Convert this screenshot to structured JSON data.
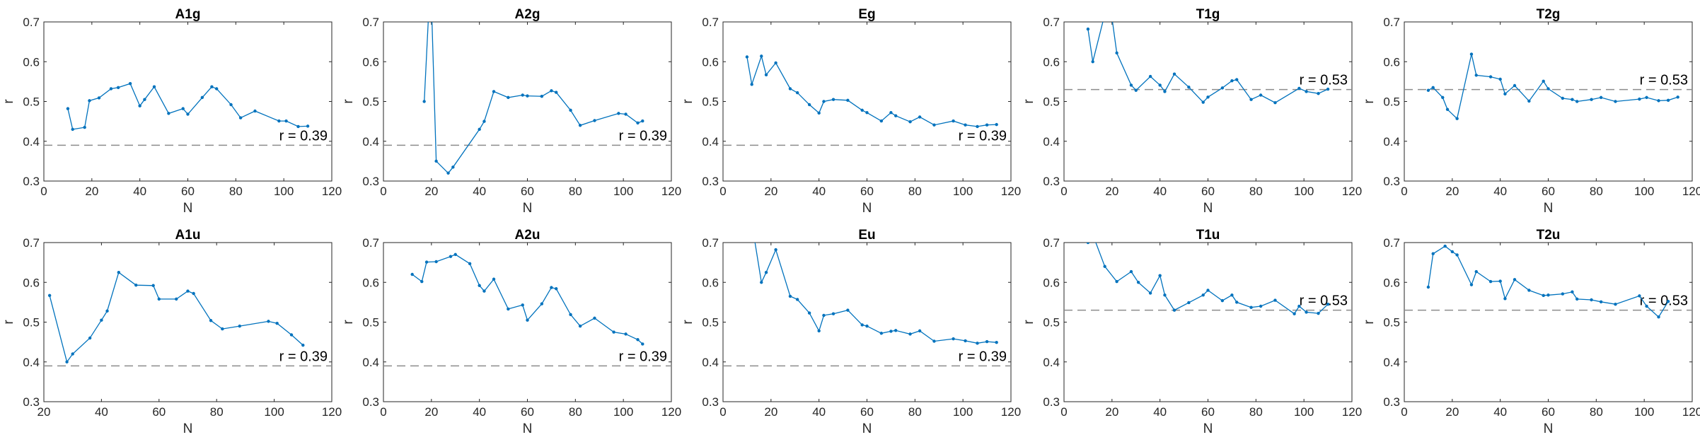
{
  "colors": {
    "series": "#0072BD",
    "reference": "#8c8c8c",
    "axes": "#262626"
  },
  "chart_data": [
    {
      "type": "line",
      "title": "A1g",
      "xlabel": "N",
      "ylabel": "r",
      "xlim": [
        0,
        120
      ],
      "ylim": [
        0.3,
        0.7
      ],
      "xticks": [
        "0",
        "20",
        "40",
        "60",
        "80",
        "100",
        "120"
      ],
      "yticks": [
        "0.3",
        "0.4",
        "0.5",
        "0.6",
        "0.7"
      ],
      "reference": {
        "value": 0.39,
        "label": "r = 0.39"
      },
      "x": [
        10,
        12,
        17,
        19,
        23,
        28,
        31,
        36,
        40,
        42,
        46,
        52,
        58,
        60,
        66,
        70,
        72,
        78,
        82,
        88,
        98,
        101,
        106,
        110
      ],
      "y": [
        0.482,
        0.43,
        0.435,
        0.502,
        0.509,
        0.532,
        0.535,
        0.545,
        0.489,
        0.505,
        0.537,
        0.47,
        0.482,
        0.468,
        0.51,
        0.537,
        0.532,
        0.492,
        0.459,
        0.476,
        0.451,
        0.451,
        0.437,
        0.438
      ]
    },
    {
      "type": "line",
      "title": "A2g",
      "xlabel": "N",
      "ylabel": "r",
      "xlim": [
        0,
        120
      ],
      "ylim": [
        0.3,
        0.7
      ],
      "xticks": [
        "0",
        "20",
        "40",
        "60",
        "80",
        "100",
        "120"
      ],
      "yticks": [
        "0.3",
        "0.4",
        "0.5",
        "0.6",
        "0.7"
      ],
      "reference": {
        "value": 0.39,
        "label": "r = 0.39"
      },
      "x": [
        17,
        19,
        20,
        22,
        27,
        29,
        40,
        42,
        46,
        52,
        58,
        60,
        66,
        70,
        72,
        78,
        82,
        88,
        98,
        101,
        106,
        108
      ],
      "y": [
        0.5,
        0.74,
        0.75,
        0.35,
        0.32,
        0.335,
        0.43,
        0.45,
        0.525,
        0.51,
        0.516,
        0.514,
        0.513,
        0.527,
        0.523,
        0.478,
        0.44,
        0.452,
        0.47,
        0.468,
        0.446,
        0.451
      ]
    },
    {
      "type": "line",
      "title": "Eg",
      "xlabel": "N",
      "ylabel": "r",
      "xlim": [
        0,
        120
      ],
      "ylim": [
        0.3,
        0.7
      ],
      "xticks": [
        "0",
        "20",
        "40",
        "60",
        "80",
        "100",
        "120"
      ],
      "yticks": [
        "0.3",
        "0.4",
        "0.5",
        "0.6",
        "0.7"
      ],
      "reference": {
        "value": 0.39,
        "label": "r = 0.39"
      },
      "x": [
        10,
        12,
        16,
        18,
        22,
        28,
        31,
        36,
        40,
        42,
        46,
        52,
        58,
        60,
        66,
        70,
        72,
        78,
        82,
        88,
        96,
        101,
        106,
        110,
        114
      ],
      "y": [
        0.612,
        0.543,
        0.614,
        0.567,
        0.597,
        0.532,
        0.522,
        0.492,
        0.471,
        0.5,
        0.505,
        0.503,
        0.478,
        0.472,
        0.451,
        0.472,
        0.464,
        0.449,
        0.461,
        0.441,
        0.451,
        0.441,
        0.437,
        0.441,
        0.442
      ]
    },
    {
      "type": "line",
      "title": "T1g",
      "xlabel": "N",
      "ylabel": "r",
      "xlim": [
        0,
        120
      ],
      "ylim": [
        0.3,
        0.7
      ],
      "xticks": [
        "0",
        "20",
        "40",
        "60",
        "80",
        "100",
        "120"
      ],
      "yticks": [
        "0.3",
        "0.4",
        "0.5",
        "0.6",
        "0.7"
      ],
      "reference": {
        "value": 0.53,
        "label": "r = 0.53"
      },
      "x": [
        10,
        12,
        17,
        20,
        22,
        28,
        30,
        36,
        40,
        42,
        46,
        52,
        58,
        60,
        66,
        70,
        72,
        78,
        82,
        88,
        98,
        101,
        106,
        110
      ],
      "y": [
        0.682,
        0.6,
        0.72,
        0.71,
        0.622,
        0.541,
        0.528,
        0.563,
        0.541,
        0.525,
        0.569,
        0.536,
        0.498,
        0.511,
        0.534,
        0.552,
        0.555,
        0.505,
        0.516,
        0.497,
        0.533,
        0.525,
        0.52,
        0.531
      ]
    },
    {
      "type": "line",
      "title": "T2g",
      "xlabel": "N",
      "ylabel": "r",
      "xlim": [
        0,
        120
      ],
      "ylim": [
        0.3,
        0.7
      ],
      "xticks": [
        "0",
        "20",
        "40",
        "60",
        "80",
        "100",
        "120"
      ],
      "yticks": [
        "0.3",
        "0.4",
        "0.5",
        "0.6",
        "0.7"
      ],
      "reference": {
        "value": 0.53,
        "label": "r = 0.53"
      },
      "x": [
        10,
        12,
        16,
        18,
        22,
        28,
        30,
        36,
        40,
        42,
        46,
        52,
        58,
        60,
        66,
        70,
        72,
        78,
        82,
        88,
        98,
        101,
        106,
        110,
        114
      ],
      "y": [
        0.528,
        0.535,
        0.51,
        0.48,
        0.457,
        0.619,
        0.566,
        0.562,
        0.556,
        0.519,
        0.54,
        0.501,
        0.551,
        0.532,
        0.508,
        0.505,
        0.5,
        0.505,
        0.51,
        0.5,
        0.506,
        0.51,
        0.502,
        0.503,
        0.511
      ]
    },
    {
      "type": "line",
      "title": "A1u",
      "xlabel": "N",
      "ylabel": "r",
      "xlim": [
        20,
        120
      ],
      "ylim": [
        0.3,
        0.7
      ],
      "xticks": [
        "20",
        "40",
        "60",
        "80",
        "100",
        "120"
      ],
      "yticks": [
        "0.3",
        "0.4",
        "0.5",
        "0.6",
        "0.7"
      ],
      "reference": {
        "value": 0.39,
        "label": "r = 0.39"
      },
      "x": [
        22,
        28,
        30,
        36,
        40,
        42,
        46,
        52,
        58,
        60,
        66,
        70,
        72,
        78,
        82,
        88,
        98,
        101,
        106,
        110
      ],
      "y": [
        0.567,
        0.4,
        0.42,
        0.46,
        0.505,
        0.528,
        0.625,
        0.593,
        0.592,
        0.558,
        0.558,
        0.578,
        0.572,
        0.504,
        0.483,
        0.49,
        0.502,
        0.497,
        0.468,
        0.442
      ]
    },
    {
      "type": "line",
      "title": "A2u",
      "xlabel": "N",
      "ylabel": "r",
      "xlim": [
        0,
        120
      ],
      "ylim": [
        0.3,
        0.7
      ],
      "xticks": [
        "0",
        "20",
        "40",
        "60",
        "80",
        "100",
        "120"
      ],
      "yticks": [
        "0.3",
        "0.4",
        "0.5",
        "0.6",
        "0.7"
      ],
      "reference": {
        "value": 0.39,
        "label": "r = 0.39"
      },
      "x": [
        12,
        16,
        18,
        22,
        28,
        30,
        36,
        40,
        42,
        46,
        52,
        58,
        60,
        66,
        70,
        72,
        78,
        82,
        88,
        96,
        101,
        106,
        108
      ],
      "y": [
        0.62,
        0.602,
        0.651,
        0.652,
        0.665,
        0.67,
        0.647,
        0.592,
        0.578,
        0.608,
        0.533,
        0.543,
        0.505,
        0.546,
        0.587,
        0.584,
        0.519,
        0.49,
        0.51,
        0.475,
        0.47,
        0.456,
        0.445
      ]
    },
    {
      "type": "line",
      "title": "Eu",
      "xlabel": "N",
      "ylabel": "r",
      "xlim": [
        0,
        120
      ],
      "ylim": [
        0.3,
        0.7
      ],
      "xticks": [
        "0",
        "20",
        "40",
        "60",
        "80",
        "100",
        "120"
      ],
      "yticks": [
        "0.3",
        "0.4",
        "0.5",
        "0.6",
        "0.7"
      ],
      "reference": {
        "value": 0.39,
        "label": "r = 0.39"
      },
      "x": [
        10,
        12,
        16,
        18,
        22,
        28,
        31,
        36,
        40,
        42,
        46,
        52,
        58,
        60,
        66,
        70,
        72,
        78,
        82,
        88,
        96,
        101,
        106,
        110,
        114
      ],
      "y": [
        0.75,
        0.75,
        0.6,
        0.625,
        0.682,
        0.565,
        0.557,
        0.523,
        0.478,
        0.517,
        0.521,
        0.53,
        0.493,
        0.49,
        0.472,
        0.477,
        0.479,
        0.47,
        0.478,
        0.452,
        0.458,
        0.453,
        0.447,
        0.451,
        0.449
      ]
    },
    {
      "type": "line",
      "title": "T1u",
      "xlabel": "N",
      "ylabel": "r",
      "xlim": [
        0,
        120
      ],
      "ylim": [
        0.3,
        0.7
      ],
      "xticks": [
        "0",
        "20",
        "40",
        "60",
        "80",
        "100",
        "120"
      ],
      "yticks": [
        "0.3",
        "0.4",
        "0.5",
        "0.6",
        "0.7"
      ],
      "reference": {
        "value": 0.53,
        "label": "r = 0.53"
      },
      "x": [
        10,
        12,
        17,
        22,
        28,
        31,
        36,
        40,
        42,
        46,
        52,
        58,
        60,
        66,
        70,
        72,
        78,
        82,
        88,
        96,
        98,
        101,
        106,
        110
      ],
      "y": [
        0.7,
        0.72,
        0.64,
        0.602,
        0.627,
        0.6,
        0.573,
        0.617,
        0.568,
        0.53,
        0.549,
        0.568,
        0.58,
        0.554,
        0.568,
        0.55,
        0.537,
        0.54,
        0.555,
        0.521,
        0.54,
        0.525,
        0.522,
        0.545
      ]
    },
    {
      "type": "line",
      "title": "T2u",
      "xlabel": "N",
      "ylabel": "r",
      "xlim": [
        0,
        120
      ],
      "ylim": [
        0.3,
        0.7
      ],
      "xticks": [
        "0",
        "20",
        "40",
        "60",
        "80",
        "100",
        "120"
      ],
      "yticks": [
        "0.3",
        "0.4",
        "0.5",
        "0.6",
        "0.7"
      ],
      "reference": {
        "value": 0.53,
        "label": "r = 0.53"
      },
      "x": [
        10,
        12,
        17,
        20,
        22,
        28,
        30,
        36,
        40,
        42,
        46,
        52,
        58,
        60,
        66,
        70,
        72,
        78,
        82,
        88,
        98,
        101,
        106,
        110
      ],
      "y": [
        0.588,
        0.672,
        0.691,
        0.677,
        0.669,
        0.594,
        0.627,
        0.602,
        0.603,
        0.559,
        0.607,
        0.58,
        0.567,
        0.568,
        0.571,
        0.576,
        0.558,
        0.556,
        0.551,
        0.545,
        0.566,
        0.54,
        0.513,
        0.552
      ]
    }
  ]
}
